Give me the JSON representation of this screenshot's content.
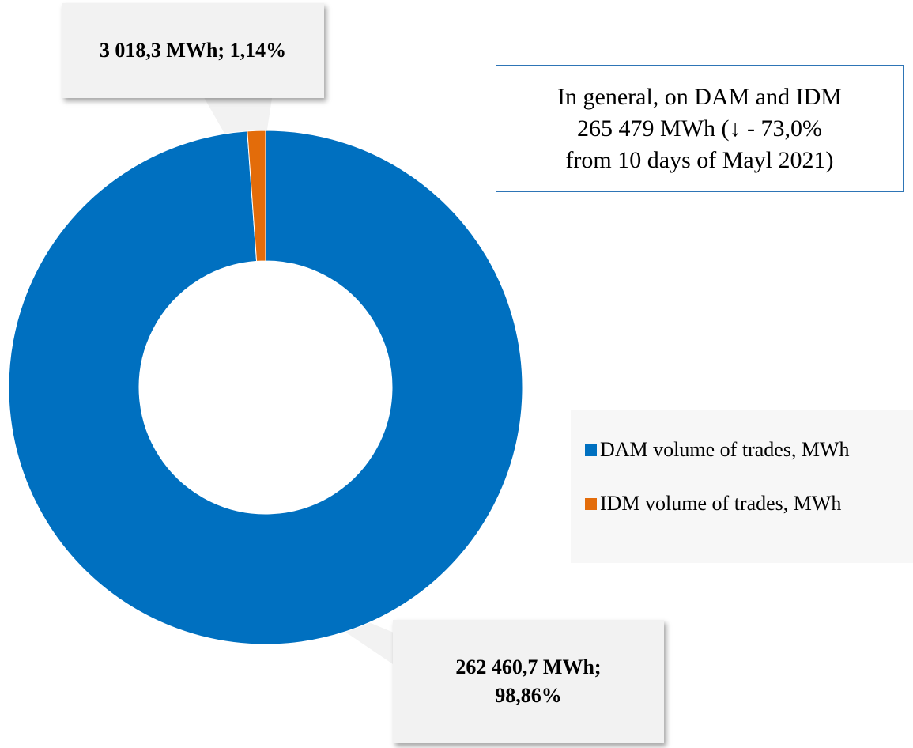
{
  "chart_data": {
    "type": "donut",
    "categories": [
      "DAM volume of trades, MWh",
      "IDM volume of trades, MWh"
    ],
    "values": [
      262460.7,
      3018.3
    ],
    "value_labels": [
      "262 460,7 MWh; 98,86%",
      "3 018,3 MWh; 1,14%"
    ],
    "colors": [
      "#0070c0",
      "#e36c0a"
    ],
    "annotation": [
      "In general, on DAM and IDM",
      "265 479 MWh (↓ - 73,0%",
      "from 10 days of Mayl 2021)"
    ],
    "legend": "right"
  }
}
